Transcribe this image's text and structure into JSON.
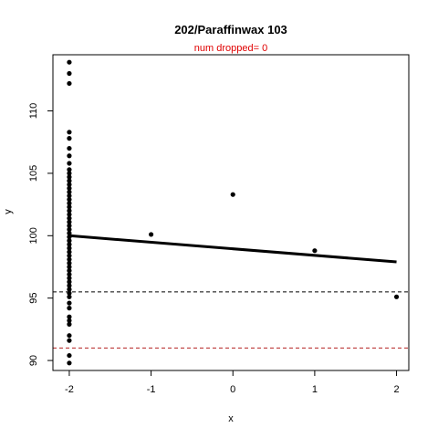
{
  "chart_data": {
    "type": "scatter",
    "title": "202/Paraffinwax 103",
    "subtitle": "num dropped= 0",
    "xlabel": "x",
    "ylabel": "y",
    "xlim": [
      -2.2,
      2.15
    ],
    "ylim": [
      89.2,
      114.5
    ],
    "xticks": [
      -2,
      -1,
      0,
      1,
      2
    ],
    "yticks": [
      90,
      95,
      100,
      105,
      110
    ],
    "grid": false,
    "points": [
      [
        -2,
        113.9
      ],
      [
        -2,
        113.0
      ],
      [
        -2,
        112.2
      ],
      [
        -2,
        108.3
      ],
      [
        -2,
        107.8
      ],
      [
        -2,
        107.0
      ],
      [
        -2,
        106.4
      ],
      [
        -2,
        105.8
      ],
      [
        -2,
        105.3
      ],
      [
        -2,
        105.0
      ],
      [
        -2,
        104.7
      ],
      [
        -2,
        104.4
      ],
      [
        -2,
        104.1
      ],
      [
        -2,
        103.8
      ],
      [
        -2,
        103.5
      ],
      [
        -2,
        103.2
      ],
      [
        -2,
        102.9
      ],
      [
        -2,
        102.6
      ],
      [
        -2,
        102.3
      ],
      [
        -2,
        102.0
      ],
      [
        -2,
        101.7
      ],
      [
        -2,
        101.4
      ],
      [
        -2,
        101.1
      ],
      [
        -2,
        100.8
      ],
      [
        -2,
        100.5
      ],
      [
        -2,
        100.2
      ],
      [
        -2,
        99.9
      ],
      [
        -2,
        99.6
      ],
      [
        -2,
        99.3
      ],
      [
        -2,
        99.0
      ],
      [
        -2,
        98.7
      ],
      [
        -2,
        98.4
      ],
      [
        -2,
        98.1
      ],
      [
        -2,
        97.8
      ],
      [
        -2,
        97.5
      ],
      [
        -2,
        97.2
      ],
      [
        -2,
        96.9
      ],
      [
        -2,
        96.6
      ],
      [
        -2,
        96.3
      ],
      [
        -2,
        96.0
      ],
      [
        -2,
        95.7
      ],
      [
        -2,
        95.4
      ],
      [
        -2,
        95.1
      ],
      [
        -2,
        94.6
      ],
      [
        -2,
        94.2
      ],
      [
        -2,
        93.5
      ],
      [
        -2,
        93.2
      ],
      [
        -2,
        92.9
      ],
      [
        -2,
        92.0
      ],
      [
        -2,
        91.6
      ],
      [
        -2,
        90.4
      ],
      [
        -2,
        89.8
      ],
      [
        -1,
        100.1
      ],
      [
        0,
        103.3
      ],
      [
        1,
        98.8
      ],
      [
        2,
        95.1
      ]
    ],
    "fit_line": {
      "x": [
        -2,
        2
      ],
      "y": [
        100.0,
        97.9
      ],
      "color": "#000000"
    },
    "hlines": [
      {
        "y": 95.5,
        "color": "#000000",
        "style": "dashed"
      },
      {
        "y": 91.0,
        "color": "#b22222",
        "style": "dashed"
      }
    ],
    "title_color": "#000000",
    "subtitle_color": "#e00000",
    "point_color": "#000000"
  }
}
